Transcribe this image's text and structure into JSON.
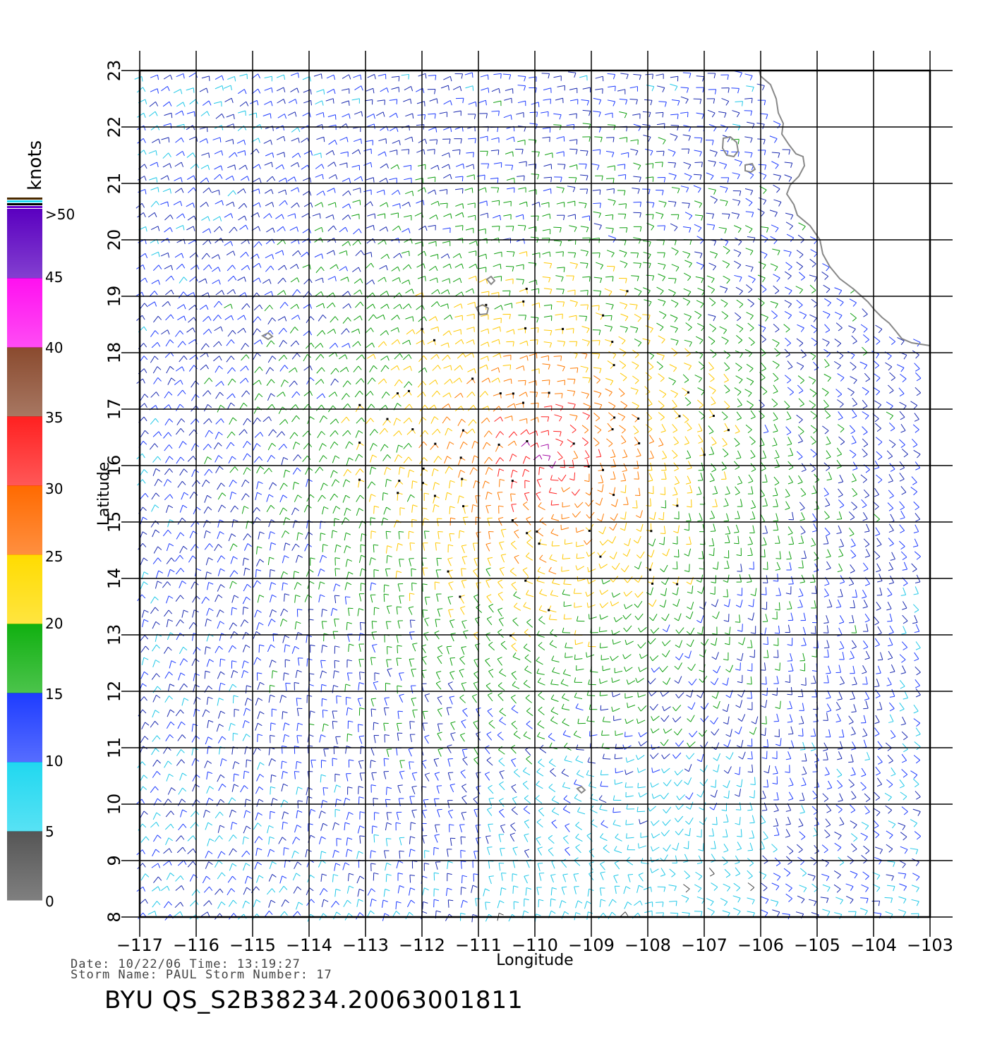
{
  "map": {
    "axes": {
      "xlabel": "Longitude",
      "ylabel": "Latitude",
      "lon_ticks": [
        "-117",
        "-116",
        "-115",
        "-114",
        "-113",
        "-112",
        "-111",
        "-110",
        "-109",
        "-108",
        "-107",
        "-106",
        "-105",
        "-104",
        "-103"
      ],
      "lat_ticks": [
        "8",
        "9",
        "10",
        "11",
        "12",
        "13",
        "14",
        "15",
        "16",
        "17",
        "18",
        "19",
        "20",
        "21",
        "22",
        "23"
      ],
      "lon_range": [
        -117,
        -103
      ],
      "lat_range": [
        8,
        23
      ],
      "grid": true
    },
    "colorbar": {
      "unit": "knots",
      "levels": [
        ">50",
        "45",
        "40",
        "35",
        "30",
        "25",
        "20",
        "15",
        "10",
        "5",
        "0"
      ],
      "bands": [
        {
          "range": "0-5",
          "color": "#555555"
        },
        {
          "range": "5-10",
          "color": "#20d8f0"
        },
        {
          "range": "10-15",
          "color": "#1e3cff"
        },
        {
          "range": "15-20",
          "color": "#10b010"
        },
        {
          "range": "20-25",
          "color": "#ffdc00"
        },
        {
          "range": "25-30",
          "color": "#ff6a00"
        },
        {
          "range": "30-35",
          "color": "#ff2020"
        },
        {
          "range": "35-40",
          "color": "#8a4a2e"
        },
        {
          "range": "40-45",
          "color": "#ff10f0"
        },
        {
          "range": ">50",
          "color": "#5a00c0"
        }
      ]
    },
    "features": {
      "coastline": "Mexico west coast",
      "islands": [
        "Islas Revillagigedo",
        "Islas Marías"
      ],
      "storm_center_lon": -109.8,
      "storm_center_lat": 16.2
    }
  },
  "footer": {
    "date_line": "Date:  10/22/06    Time:  13:19:27",
    "storm_line": "Storm  Name:  PAUL    Storm  Number:  17",
    "file_id": "BYU  QS_S2B38234.20063001811"
  }
}
